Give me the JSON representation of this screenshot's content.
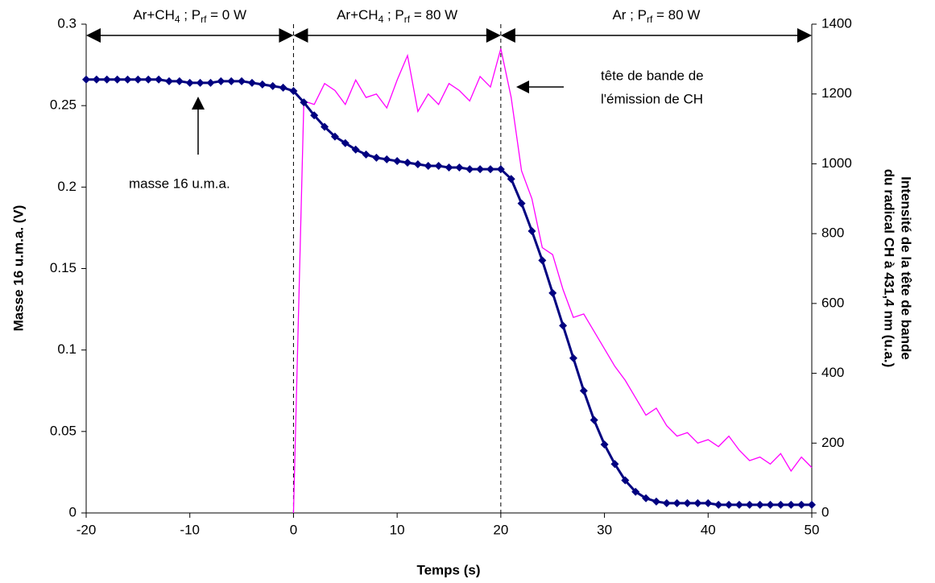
{
  "chart_data": {
    "type": "line",
    "x_label": "Temps (s)",
    "y_label": "Masse 16 u.m.a. (V)",
    "y2_label": [
      "Intensité de la tête de bande",
      "du radical CH à 431,4 nm (u.a.)"
    ],
    "xlim": [
      -20,
      50
    ],
    "xticks": [
      -20,
      -10,
      0,
      10,
      20,
      30,
      40,
      50
    ],
    "ylim": [
      0,
      0.3
    ],
    "yticks": [
      0,
      0.05,
      0.1,
      0.15,
      0.2,
      0.25,
      0.3
    ],
    "y2lim": [
      0,
      1400
    ],
    "y2ticks": [
      0,
      200,
      400,
      600,
      800,
      1000,
      1200,
      1400
    ],
    "vlines": [
      0,
      20
    ],
    "regions": [
      {
        "parts": [
          {
            "text": "Ar+CH"
          },
          {
            "text": "4",
            "sub": true
          },
          {
            "text": " ; P"
          },
          {
            "text": "rf",
            "sub": true
          },
          {
            "text": " = 0 W"
          }
        ]
      },
      {
        "parts": [
          {
            "text": "Ar+CH"
          },
          {
            "text": "4",
            "sub": true
          },
          {
            "text": " ; P"
          },
          {
            "text": "rf",
            "sub": true
          },
          {
            "text": " = 80 W"
          }
        ]
      },
      {
        "parts": [
          {
            "text": "Ar"
          },
          {
            "text": " ; P"
          },
          {
            "text": "rf",
            "sub": true
          },
          {
            "text": " = 80 W"
          }
        ]
      }
    ],
    "annotations": [
      {
        "lines": [
          "tête de bande de",
          "l'émission de CH"
        ]
      },
      {
        "lines": [
          "masse 16 u.m.a."
        ]
      }
    ],
    "series": [
      {
        "color": "#000080",
        "marker": "diamond",
        "x": [
          -20,
          -19,
          -18,
          -17,
          -16,
          -15,
          -14,
          -13,
          -12,
          -11,
          -10,
          -9,
          -8,
          -7,
          -6,
          -5,
          -4,
          -3,
          -2,
          -1,
          0,
          1,
          2,
          3,
          4,
          5,
          6,
          7,
          8,
          9,
          10,
          11,
          12,
          13,
          14,
          15,
          16,
          17,
          18,
          19,
          20,
          21,
          22,
          23,
          24,
          25,
          26,
          27,
          28,
          29,
          30,
          31,
          32,
          33,
          34,
          35,
          36,
          37,
          38,
          39,
          40,
          41,
          42,
          43,
          44,
          45,
          46,
          47,
          48,
          49,
          50
        ],
        "values": [
          0.266,
          0.266,
          0.266,
          0.266,
          0.266,
          0.266,
          0.266,
          0.266,
          0.265,
          0.265,
          0.264,
          0.264,
          0.264,
          0.265,
          0.265,
          0.265,
          0.264,
          0.263,
          0.262,
          0.261,
          0.259,
          0.252,
          0.244,
          0.237,
          0.231,
          0.227,
          0.223,
          0.22,
          0.218,
          0.217,
          0.216,
          0.215,
          0.214,
          0.213,
          0.213,
          0.212,
          0.212,
          0.211,
          0.211,
          0.211,
          0.211,
          0.205,
          0.19,
          0.173,
          0.155,
          0.135,
          0.115,
          0.095,
          0.075,
          0.057,
          0.042,
          0.03,
          0.02,
          0.013,
          0.009,
          0.007,
          0.006,
          0.006,
          0.006,
          0.006,
          0.006,
          0.005,
          0.005,
          0.005,
          0.005,
          0.005,
          0.005,
          0.005,
          0.005,
          0.005,
          0.005
        ]
      },
      {
        "color": "#ff00ff",
        "axis": "y2",
        "x": [
          0,
          1,
          2,
          3,
          4,
          5,
          6,
          7,
          8,
          9,
          10,
          11,
          12,
          13,
          14,
          15,
          16,
          17,
          18,
          19,
          20,
          21,
          22,
          23,
          24,
          25,
          26,
          27,
          28,
          29,
          30,
          31,
          32,
          33,
          34,
          35,
          36,
          37,
          38,
          39,
          40,
          41,
          42,
          43,
          44,
          45,
          46,
          47,
          48,
          49,
          50
        ],
        "values": [
          0,
          1180,
          1170,
          1230,
          1210,
          1170,
          1240,
          1190,
          1200,
          1160,
          1240,
          1310,
          1150,
          1200,
          1170,
          1230,
          1210,
          1180,
          1250,
          1220,
          1330,
          1190,
          980,
          900,
          760,
          740,
          640,
          560,
          570,
          520,
          470,
          420,
          380,
          330,
          280,
          300,
          250,
          220,
          230,
          200,
          210,
          190,
          220,
          180,
          150,
          160,
          140,
          170,
          120,
          160,
          130
        ]
      }
    ]
  }
}
